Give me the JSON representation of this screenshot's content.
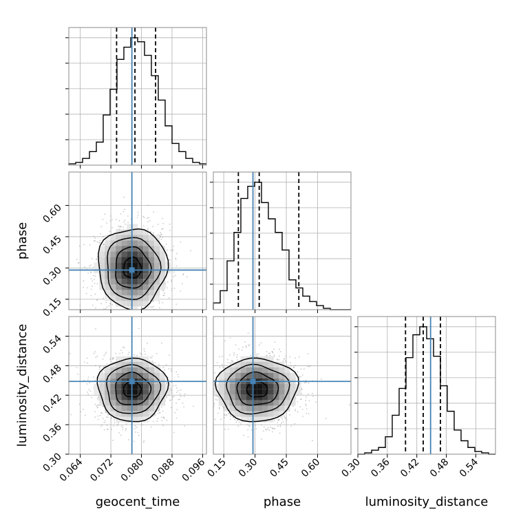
{
  "chart_data": {
    "type": "corner",
    "parameters": [
      "geocent_time",
      "phase",
      "luminosity_distance"
    ],
    "truths": [
      0.0775,
      0.29,
      0.448
    ],
    "truth_color": "#4682b4",
    "grid": true,
    "ranges": [
      [
        0.061,
        0.097
      ],
      [
        0.1,
        0.76
      ],
      [
        0.3,
        0.58
      ]
    ],
    "ticks": [
      [
        "0.064",
        "0.072",
        "0.080",
        "0.088",
        "0.096"
      ],
      [
        "0.15",
        "0.30",
        "0.45",
        "0.60"
      ],
      [
        "0.30",
        "0.36",
        "0.42",
        "0.48",
        "0.54"
      ]
    ],
    "tick_values": [
      [
        0.064,
        0.072,
        0.08,
        0.088,
        0.096
      ],
      [
        0.15,
        0.3,
        0.45,
        0.6
      ],
      [
        0.3,
        0.36,
        0.42,
        0.48,
        0.54
      ]
    ],
    "quantile_lines": [
      [
        0.0735,
        0.0783,
        0.0837
      ],
      [
        0.22,
        0.32,
        0.51
      ],
      [
        0.397,
        0.433,
        0.468
      ]
    ],
    "histograms": [
      {
        "parameter": "geocent_time",
        "bin_edges": [
          0.061,
          0.0628,
          0.0646,
          0.0664,
          0.0682,
          0.07,
          0.0718,
          0.0736,
          0.0754,
          0.0772,
          0.079,
          0.0808,
          0.0826,
          0.0844,
          0.0862,
          0.088,
          0.0898,
          0.0916,
          0.0934,
          0.0952,
          0.097
        ],
        "counts": [
          1,
          2,
          5,
          10,
          17,
          37,
          56,
          78,
          87,
          94,
          91,
          81,
          66,
          48,
          29,
          16,
          10,
          5,
          2,
          1
        ]
      },
      {
        "parameter": "phase",
        "bin_edges": [
          0.1,
          0.133,
          0.166,
          0.199,
          0.232,
          0.265,
          0.298,
          0.331,
          0.364,
          0.397,
          0.43,
          0.463,
          0.496,
          0.529,
          0.562,
          0.595,
          0.628,
          0.661,
          0.694,
          0.727,
          0.76
        ],
        "counts": [
          5,
          14,
          36,
          57,
          82,
          91,
          94,
          79,
          67,
          57,
          44,
          22,
          16,
          10,
          6,
          3,
          1,
          0,
          0,
          0
        ]
      },
      {
        "parameter": "luminosity_distance",
        "bin_edges": [
          0.3,
          0.314,
          0.328,
          0.342,
          0.356,
          0.37,
          0.384,
          0.398,
          0.412,
          0.426,
          0.44,
          0.454,
          0.468,
          0.482,
          0.496,
          0.51,
          0.524,
          0.538,
          0.552,
          0.566,
          0.58
        ],
        "counts": [
          0,
          1,
          3,
          5,
          13,
          29,
          49,
          72,
          89,
          95,
          86,
          73,
          51,
          32,
          18,
          10,
          5,
          2,
          1,
          0
        ]
      }
    ],
    "scatter_2d": [
      {
        "x": "geocent_time",
        "y": "phase",
        "x_center": 0.0776,
        "y_center": 0.3,
        "x_sd": 0.0042,
        "y_sd": 0.09
      },
      {
        "x": "geocent_time",
        "y": "luminosity_distance",
        "x_center": 0.0776,
        "y_center": 0.432,
        "x_sd": 0.0042,
        "y_sd": 0.03
      },
      {
        "x": "phase",
        "y": "luminosity_distance",
        "x_center": 0.31,
        "y_center": 0.432,
        "x_sd": 0.09,
        "y_sd": 0.03
      }
    ]
  }
}
